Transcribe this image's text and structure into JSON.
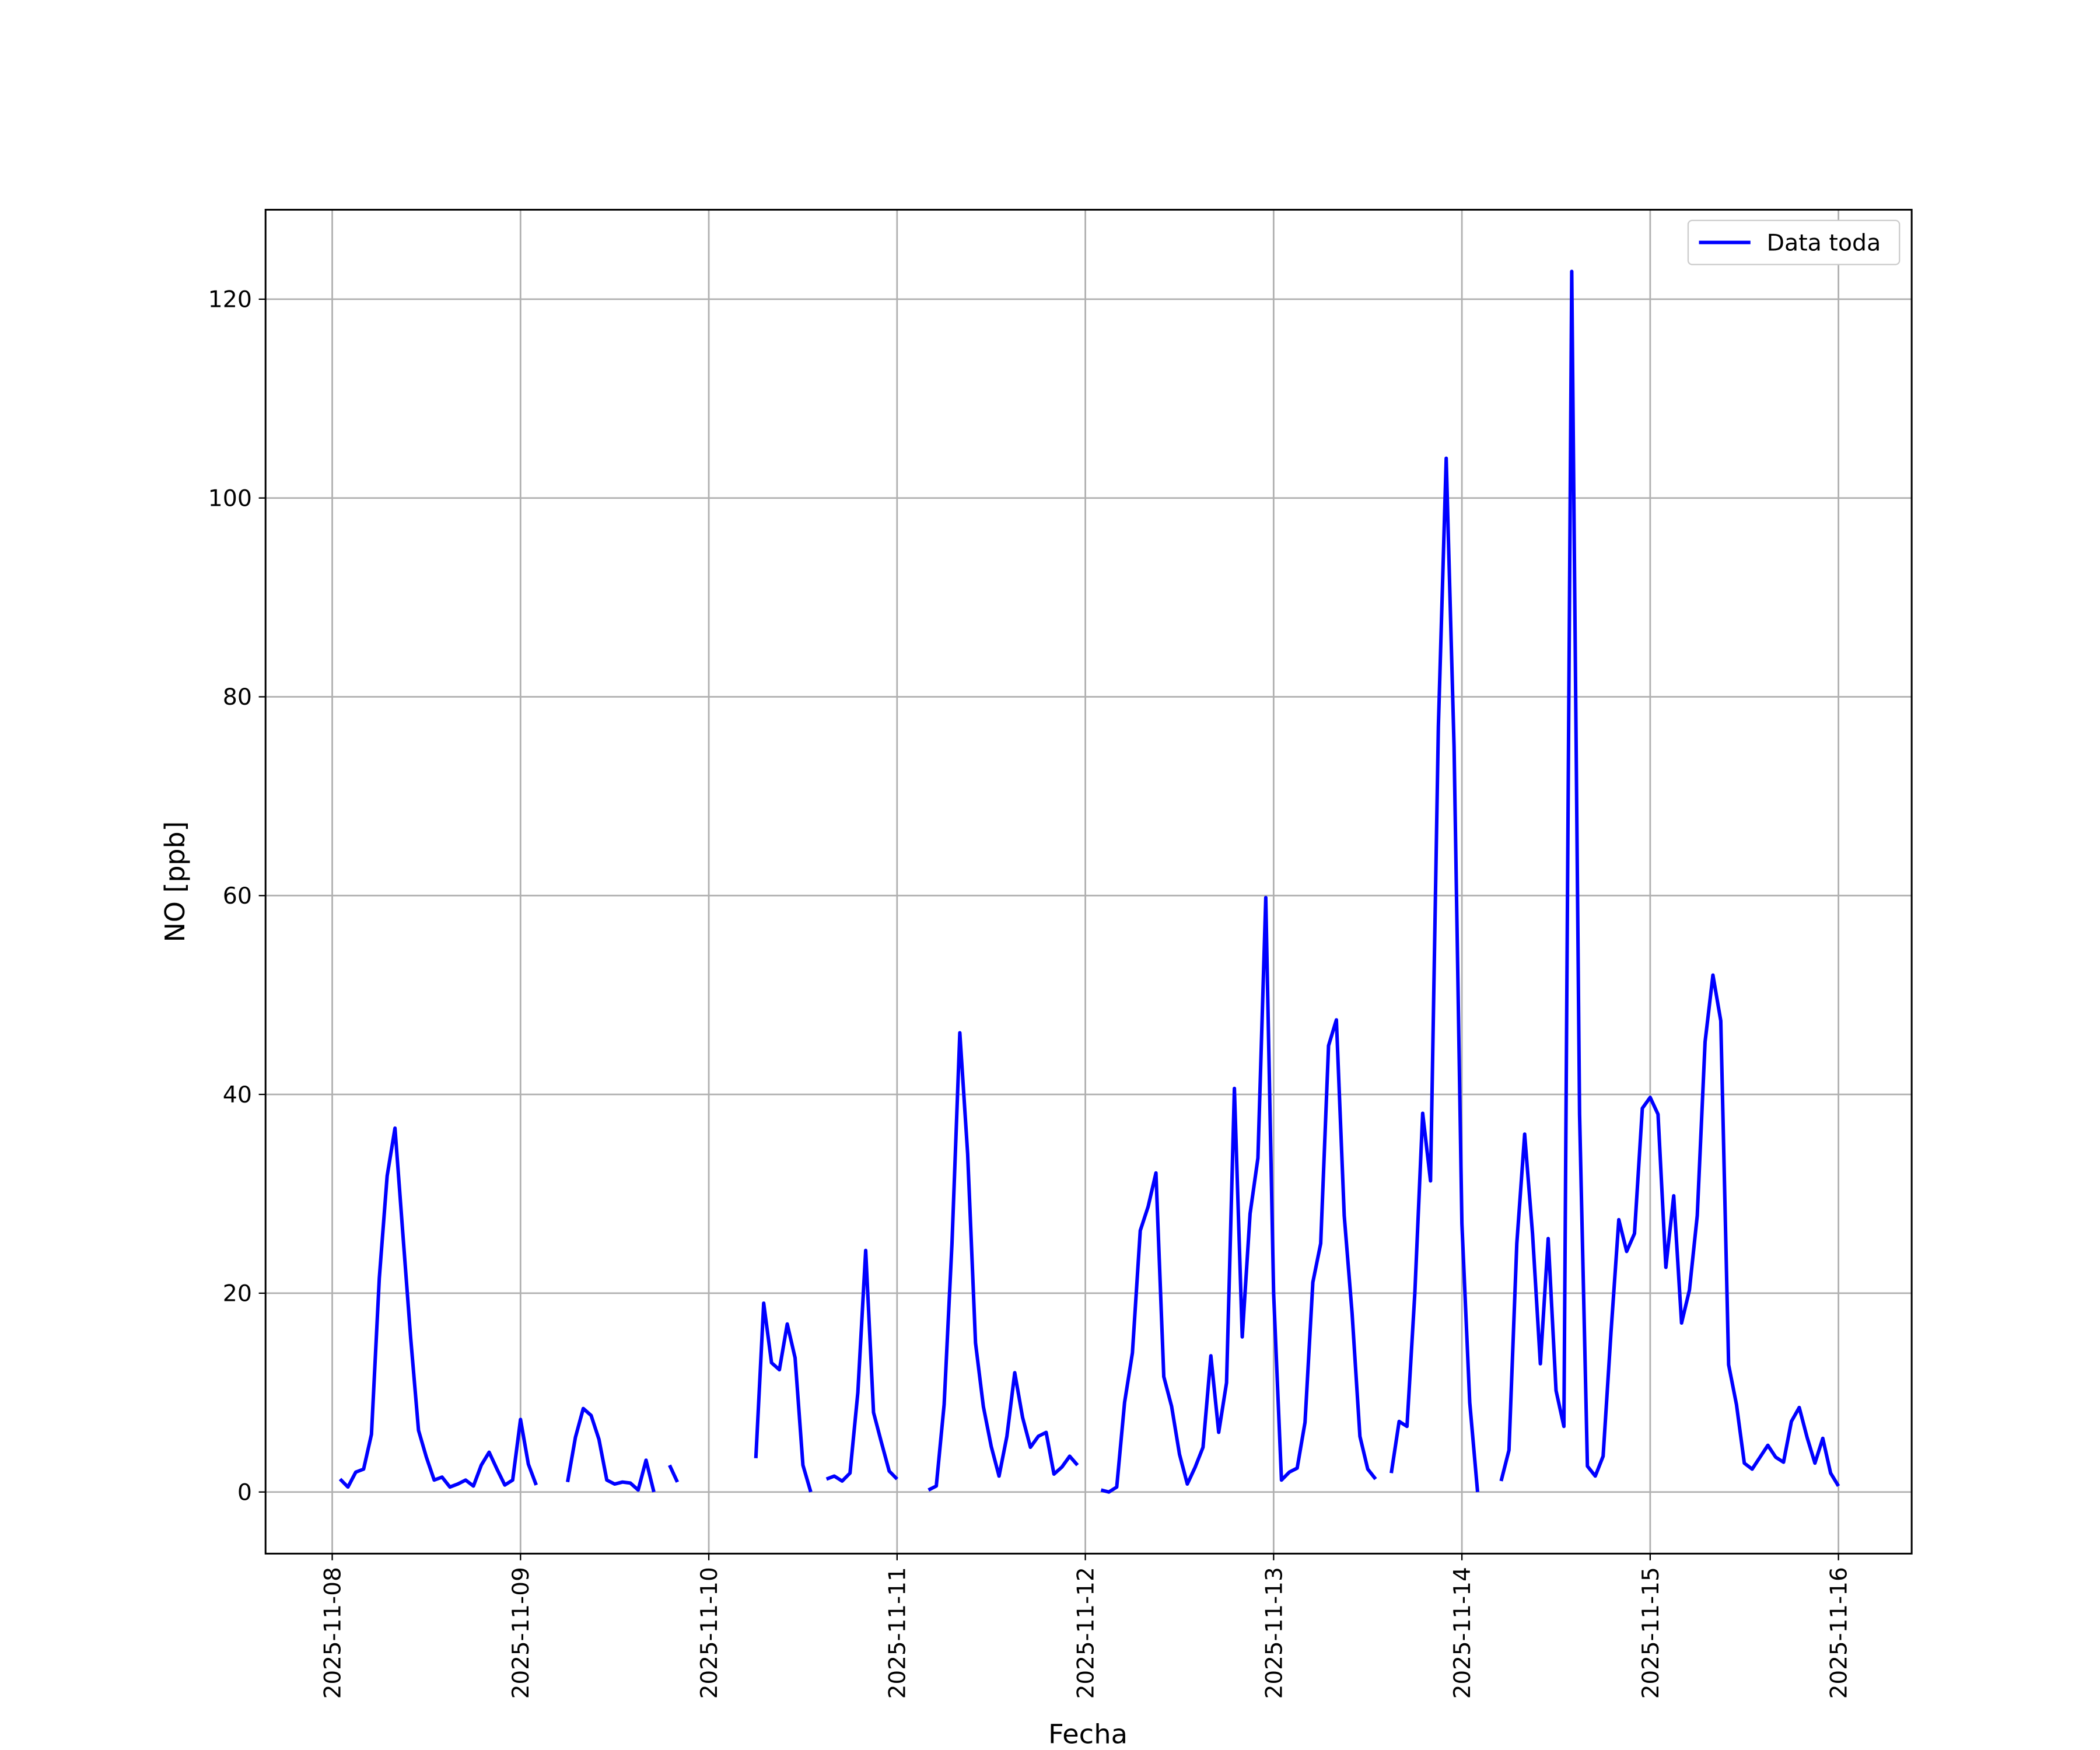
{
  "chart_data": {
    "type": "line",
    "xlabel": "Fecha",
    "ylabel": "NO [ppb]",
    "legend": "upper right",
    "grid": true,
    "xlim": [
      "2025-11-07 15:30",
      "2025-11-16 09:20"
    ],
    "ylim": [
      -6.2,
      129.0
    ],
    "xticks": [
      "2025-11-08",
      "2025-11-09",
      "2025-11-10",
      "2025-11-11",
      "2025-11-12",
      "2025-11-13",
      "2025-11-14",
      "2025-11-15",
      "2025-11-16"
    ],
    "yticks": [
      0,
      20,
      40,
      60,
      80,
      100,
      120
    ],
    "x": [
      "2025-11-08 01:00",
      "2025-11-08 02:00",
      "2025-11-08 03:00",
      "2025-11-08 04:00",
      "2025-11-08 05:00",
      "2025-11-08 06:00",
      "2025-11-08 07:00",
      "2025-11-08 08:00",
      "2025-11-08 09:00",
      "2025-11-08 10:00",
      "2025-11-08 11:00",
      "2025-11-08 12:00",
      "2025-11-08 13:00",
      "2025-11-08 14:00",
      "2025-11-08 15:00",
      "2025-11-08 16:00",
      "2025-11-08 17:00",
      "2025-11-08 18:00",
      "2025-11-08 19:00",
      "2025-11-08 20:00",
      "2025-11-08 21:00",
      "2025-11-08 22:00",
      "2025-11-08 23:00",
      "2025-11-09 00:00",
      "2025-11-09 01:00",
      "2025-11-09 02:00",
      "2025-11-09 03:00",
      "2025-11-09 06:00",
      "2025-11-09 07:00",
      "2025-11-09 08:00",
      "2025-11-09 09:00",
      "2025-11-09 10:00",
      "2025-11-09 11:00",
      "2025-11-09 12:00",
      "2025-11-09 13:00",
      "2025-11-09 14:00",
      "2025-11-09 15:00",
      "2025-11-09 16:00",
      "2025-11-09 17:00",
      "2025-11-09 18:00",
      "2025-11-09 19:00",
      "2025-11-09 20:00",
      "2025-11-09 21:00",
      "2025-11-10 06:00",
      "2025-11-10 07:00",
      "2025-11-10 08:00",
      "2025-11-10 09:00",
      "2025-11-10 10:00",
      "2025-11-10 11:00",
      "2025-11-10 12:00",
      "2025-11-10 13:00",
      "2025-11-10 14:00",
      "2025-11-10 15:00",
      "2025-11-10 16:00",
      "2025-11-10 17:00",
      "2025-11-10 18:00",
      "2025-11-10 19:00",
      "2025-11-10 20:00",
      "2025-11-10 21:00",
      "2025-11-10 22:00",
      "2025-11-10 23:00",
      "2025-11-11 00:00",
      "2025-11-11 01:00",
      "2025-11-11 04:00",
      "2025-11-11 05:00",
      "2025-11-11 06:00",
      "2025-11-11 07:00",
      "2025-11-11 08:00",
      "2025-11-11 09:00",
      "2025-11-11 10:00",
      "2025-11-11 11:00",
      "2025-11-11 12:00",
      "2025-11-11 13:00",
      "2025-11-11 14:00",
      "2025-11-11 15:00",
      "2025-11-11 16:00",
      "2025-11-11 17:00",
      "2025-11-11 18:00",
      "2025-11-11 19:00",
      "2025-11-11 20:00",
      "2025-11-11 21:00",
      "2025-11-11 22:00",
      "2025-11-11 23:00",
      "2025-11-12 00:00",
      "2025-11-12 02:00",
      "2025-11-12 03:00",
      "2025-11-12 04:00",
      "2025-11-12 05:00",
      "2025-11-12 06:00",
      "2025-11-12 07:00",
      "2025-11-12 08:00",
      "2025-11-12 09:00",
      "2025-11-12 10:00",
      "2025-11-12 11:00",
      "2025-11-12 12:00",
      "2025-11-12 13:00",
      "2025-11-12 14:00",
      "2025-11-12 15:00",
      "2025-11-12 16:00",
      "2025-11-12 17:00",
      "2025-11-12 18:00",
      "2025-11-12 19:00",
      "2025-11-12 20:00",
      "2025-11-12 21:00",
      "2025-11-12 22:00",
      "2025-11-12 23:00",
      "2025-11-13 00:00",
      "2025-11-13 01:00",
      "2025-11-13 02:00",
      "2025-11-13 03:00",
      "2025-11-13 04:00",
      "2025-11-13 05:00",
      "2025-11-13 06:00",
      "2025-11-13 07:00",
      "2025-11-13 08:00",
      "2025-11-13 09:00",
      "2025-11-13 10:00",
      "2025-11-13 11:00",
      "2025-11-13 12:00",
      "2025-11-13 13:00",
      "2025-11-13 14:00",
      "2025-11-13 15:00",
      "2025-11-13 16:00",
      "2025-11-13 17:00",
      "2025-11-13 18:00",
      "2025-11-13 19:00",
      "2025-11-13 20:00",
      "2025-11-13 21:00",
      "2025-11-13 22:00",
      "2025-11-13 23:00",
      "2025-11-14 00:00",
      "2025-11-14 01:00",
      "2025-11-14 02:00",
      "2025-11-14 03:00",
      "2025-11-14 05:00",
      "2025-11-14 06:00",
      "2025-11-14 07:00",
      "2025-11-14 08:00",
      "2025-11-14 09:00",
      "2025-11-14 10:00",
      "2025-11-14 11:00",
      "2025-11-14 12:00",
      "2025-11-14 13:00",
      "2025-11-14 14:00",
      "2025-11-14 15:00",
      "2025-11-14 16:00",
      "2025-11-14 17:00",
      "2025-11-14 18:00",
      "2025-11-14 19:00",
      "2025-11-14 20:00",
      "2025-11-14 21:00",
      "2025-11-14 22:00",
      "2025-11-14 23:00",
      "2025-11-15 00:00",
      "2025-11-15 01:00",
      "2025-11-15 02:00",
      "2025-11-15 03:00",
      "2025-11-15 04:00",
      "2025-11-15 05:00",
      "2025-11-15 06:00",
      "2025-11-15 07:00",
      "2025-11-15 08:00",
      "2025-11-15 09:00",
      "2025-11-15 10:00",
      "2025-11-15 11:00",
      "2025-11-15 12:00",
      "2025-11-15 13:00",
      "2025-11-15 14:00",
      "2025-11-15 15:00",
      "2025-11-15 16:00",
      "2025-11-15 17:00",
      "2025-11-15 18:00",
      "2025-11-15 19:00",
      "2025-11-15 20:00",
      "2025-11-15 21:00",
      "2025-11-15 22:00",
      "2025-11-15 23:00",
      "2025-11-16 00:00"
    ],
    "series": [
      {
        "name": "Data toda",
        "color": "#0000ff",
        "values": [
          1.3,
          0.5,
          2.0,
          2.3,
          5.8,
          21.5,
          31.8,
          36.6,
          26,
          15.5,
          6.2,
          3.5,
          1.2,
          1.5,
          0.5,
          0.8,
          1.2,
          0.6,
          2.7,
          4.0,
          2.3,
          0.7,
          1.2,
          7.3,
          2.8,
          0.7,
          null,
          1.0,
          5.5,
          8.4,
          7.7,
          5.3,
          1.2,
          0.8,
          1.0,
          0.9,
          0.2,
          3.2,
          0,
          null,
          2.7,
          1.0,
          null,
          3.4,
          19,
          13,
          12.3,
          16.9,
          13.5,
          2.7,
          0,
          null,
          1.3,
          1.6,
          1.1,
          1.9,
          10,
          24.3,
          8.0,
          5,
          2.1,
          1.3,
          null,
          0.2,
          0.6,
          8.8,
          25,
          46.2,
          34,
          15,
          8.6,
          4.6,
          1.6,
          5.6,
          12,
          7.5,
          4.5,
          5.6,
          6.0,
          1.8,
          2.5,
          3.6,
          2.7,
          null,
          0.2,
          0.0,
          0.5,
          9,
          14,
          26.3,
          28.7,
          32.1,
          11.6,
          8.6,
          3.8,
          0.8,
          2.5,
          4.5,
          13.7,
          6.0,
          11,
          40.6,
          15.6,
          28,
          33.6,
          59.8,
          20,
          1.2,
          2.0,
          2.4,
          7,
          21.1,
          25,
          44.9,
          47.5,
          27.8,
          18,
          5.6,
          2.3,
          1.3,
          null,
          1.9,
          7.1,
          6.6,
          20,
          38.1,
          31.3,
          77,
          104,
          75,
          27,
          9,
          0,
          null,
          1.1,
          4.2,
          25,
          36,
          26,
          12.9,
          25.5,
          10.2,
          6.6,
          122.8,
          38,
          2.6,
          1.6,
          3.6,
          16,
          27.4,
          24.2,
          26,
          38.6,
          39.7,
          38,
          22.6,
          29.8,
          17,
          20.3,
          27.8,
          45.3,
          52,
          47.4,
          12.8,
          8.8,
          2.9,
          2.3,
          3.5,
          4.7,
          3.5,
          3.0,
          7.1,
          8.5,
          5.5,
          2.9,
          5.4,
          1.9,
          0.6
        ]
      }
    ]
  }
}
